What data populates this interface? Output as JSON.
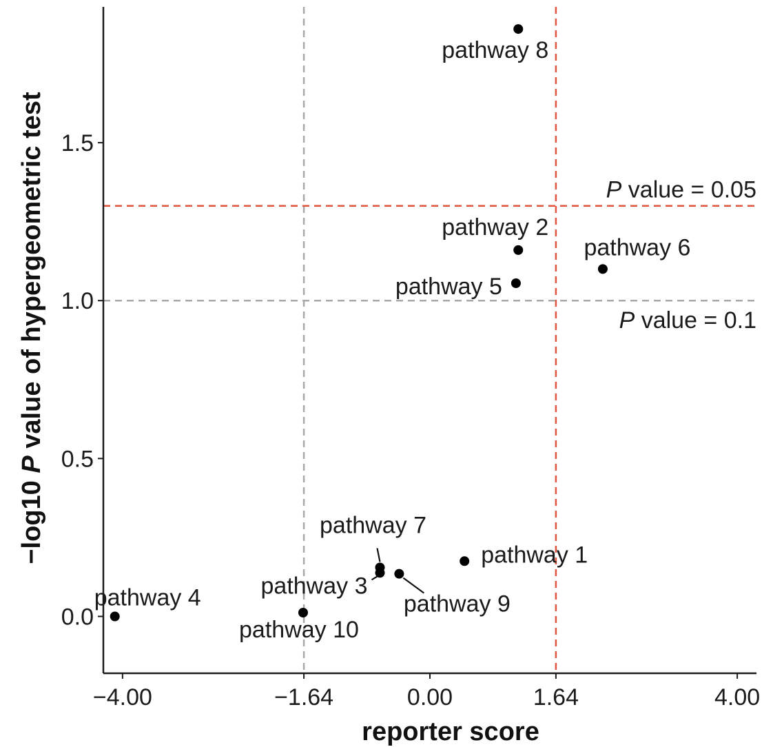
{
  "chart_data": {
    "type": "scatter",
    "title": "",
    "xlabel": "reporter score",
    "ylabel_prefix": "−log10 ",
    "ylabel_italic": "P",
    "ylabel_suffix": " value of hypergeometric test",
    "xlim": [
      -4.25,
      4.25
    ],
    "ylim": [
      -0.18,
      1.93
    ],
    "x_ticks": [
      -4.0,
      -1.64,
      0.0,
      1.64,
      4.0
    ],
    "x_tick_labels": [
      "−4.00",
      "−1.64",
      "0.00",
      "1.64",
      "4.00"
    ],
    "y_ticks": [
      0.0,
      0.5,
      1.0,
      1.5
    ],
    "y_tick_labels": [
      "0.0",
      "0.5",
      "1.0",
      "1.5"
    ],
    "grid": false,
    "points": [
      {
        "name": "pathway 1",
        "x": 0.45,
        "y": 0.175
      },
      {
        "name": "pathway 2",
        "x": 1.15,
        "y": 1.16
      },
      {
        "name": "pathway 3",
        "x": -0.65,
        "y": 0.138
      },
      {
        "name": "pathway 4",
        "x": -4.1,
        "y": 0.0
      },
      {
        "name": "pathway 5",
        "x": 1.12,
        "y": 1.055
      },
      {
        "name": "pathway 6",
        "x": 2.25,
        "y": 1.1
      },
      {
        "name": "pathway 7",
        "x": -0.65,
        "y": 0.155
      },
      {
        "name": "pathway 8",
        "x": 1.15,
        "y": 1.86
      },
      {
        "name": "pathway 9",
        "x": -0.4,
        "y": 0.135
      },
      {
        "name": "pathway 10",
        "x": -1.65,
        "y": 0.012
      }
    ],
    "reference_lines": [
      {
        "orientation": "vertical",
        "value": -1.64,
        "color": "#a8a8a8"
      },
      {
        "orientation": "vertical",
        "value": 1.64,
        "color": "#e0553b"
      },
      {
        "orientation": "horizontal",
        "value": 1.0,
        "color": "#a8a8a8"
      },
      {
        "orientation": "horizontal",
        "value": 1.3,
        "color": "#e0553b"
      }
    ],
    "annotations": [
      {
        "italic": "P",
        "text": " value = 0.05",
        "y": 1.3,
        "position": "above-line-right"
      },
      {
        "italic": "P",
        "text": " value = 0.1",
        "y": 1.0,
        "position": "below-line-right"
      }
    ],
    "colors": {
      "point": "#000000",
      "axis": "#1a1a1a",
      "threshold": "#e0553b",
      "reference": "#a8a8a8"
    }
  }
}
